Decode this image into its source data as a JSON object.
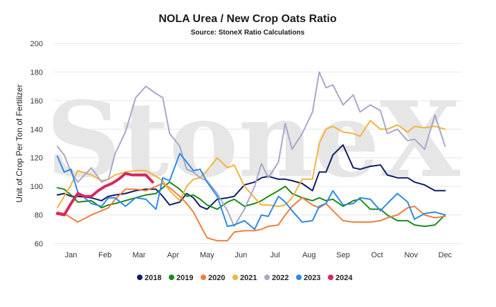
{
  "chart_data": {
    "type": "line",
    "title": "NOLA Urea / New Crop Oats Ratio",
    "subtitle": "Source: StoneX Ratio Calculations",
    "ylabel": "Unit of Crop Per Ton of Fertilizer",
    "watermark": "StoneX",
    "ylim": [
      60,
      200
    ],
    "yticks": [
      60,
      80,
      100,
      120,
      140,
      160,
      180,
      200
    ],
    "xlim": [
      0,
      12
    ],
    "months": [
      "Jan",
      "Feb",
      "Mar",
      "Apr",
      "May",
      "Jun",
      "Jul",
      "Aug",
      "Sep",
      "Oct",
      "Nov",
      "Dec"
    ],
    "grid": true,
    "legend_position": "bottom",
    "series": [
      {
        "name": "2018",
        "color": "#0d1b66",
        "x": [
          0.1,
          0.3,
          0.5,
          0.7,
          1.1,
          1.4,
          1.6,
          1.8,
          2.1,
          2.4,
          2.7,
          3.0,
          3.2,
          3.4,
          3.7,
          3.9,
          4.1,
          4.3,
          4.5,
          4.8,
          5.1,
          5.3,
          5.6,
          5.9,
          6.1,
          6.3,
          6.6,
          6.8,
          7.0,
          7.3,
          7.6,
          7.8,
          8.0,
          8.2,
          8.5,
          8.8,
          9.0,
          9.3,
          9.6,
          9.8,
          10.1,
          10.4,
          10.6,
          10.9,
          11.2,
          11.5
        ],
        "y": [
          94,
          95,
          93,
          93,
          92,
          90,
          93,
          94,
          95,
          97,
          98,
          98,
          93,
          87,
          89,
          95,
          92,
          86,
          84,
          91,
          92,
          93,
          101,
          103,
          106,
          107,
          105,
          105,
          104,
          102,
          97,
          110,
          110,
          122,
          129,
          113,
          112,
          114,
          115,
          108,
          106,
          106,
          103,
          101,
          97,
          97
        ]
      },
      {
        "name": "2019",
        "color": "#1a8a1a",
        "x": [
          0.1,
          0.3,
          0.5,
          0.7,
          1.1,
          1.4,
          1.6,
          1.8,
          2.1,
          2.4,
          2.7,
          3.0,
          3.2,
          3.4,
          3.7,
          3.9,
          4.1,
          4.3,
          4.5,
          4.8,
          5.1,
          5.3,
          5.6,
          5.9,
          6.1,
          6.3,
          6.6,
          6.8,
          7.0,
          7.3,
          7.6,
          7.8,
          8.0,
          8.2,
          8.5,
          8.8,
          9.0,
          9.3,
          9.6,
          9.8,
          10.1,
          10.4,
          10.6,
          10.9,
          11.2,
          11.5
        ],
        "y": [
          99,
          98,
          94,
          89,
          90,
          85,
          87,
          88,
          90,
          92,
          94,
          95,
          99,
          103,
          98,
          93,
          94,
          91,
          87,
          84,
          89,
          91,
          86,
          88,
          90,
          93,
          97,
          100,
          95,
          92,
          90,
          92,
          90,
          91,
          86,
          90,
          91,
          84,
          84,
          80,
          76,
          76,
          73,
          72,
          73,
          80
        ]
      },
      {
        "name": "2020",
        "color": "#f07e3a",
        "x": [
          0.1,
          0.3,
          0.5,
          0.7,
          1.1,
          1.4,
          1.6,
          1.8,
          2.1,
          2.4,
          2.7,
          3.0,
          3.2,
          3.4,
          3.7,
          3.9,
          4.1,
          4.3,
          4.5,
          4.8,
          5.1,
          5.3,
          5.6,
          5.9,
          6.1,
          6.3,
          6.6,
          6.8,
          7.0,
          7.3,
          7.6,
          7.8,
          8.0,
          8.2,
          8.5,
          8.8,
          9.0,
          9.3,
          9.6,
          9.8,
          10.1,
          10.4,
          10.6,
          10.9,
          11.2,
          11.5
        ],
        "y": [
          82,
          81,
          78,
          75,
          80,
          83,
          85,
          91,
          98,
          98,
          97,
          100,
          102,
          99,
          93,
          88,
          82,
          73,
          64,
          62,
          62,
          68,
          69,
          69,
          70,
          72,
          73,
          80,
          86,
          92,
          87,
          85,
          88,
          83,
          76,
          75,
          75,
          75,
          76,
          78,
          80,
          85,
          86,
          80,
          78,
          79
        ]
      },
      {
        "name": "2021",
        "color": "#f5b23c",
        "x": [
          0.1,
          0.3,
          0.5,
          0.7,
          1.1,
          1.4,
          1.6,
          1.8,
          2.1,
          2.4,
          2.7,
          3.0,
          3.2,
          3.4,
          3.7,
          3.9,
          4.1,
          4.3,
          4.5,
          4.8,
          5.1,
          5.3,
          5.6,
          5.9,
          6.1,
          6.3,
          6.6,
          6.8,
          7.0,
          7.3,
          7.6,
          7.8,
          8.0,
          8.2,
          8.5,
          8.8,
          9.0,
          9.3,
          9.6,
          9.8,
          10.1,
          10.4,
          10.6,
          10.9,
          11.2,
          11.5
        ],
        "y": [
          85,
          93,
          101,
          111,
          108,
          104,
          105,
          108,
          110,
          111,
          111,
          107,
          104,
          97,
          90,
          100,
          105,
          106,
          111,
          120,
          113,
          115,
          100,
          92,
          87,
          87,
          86,
          87,
          92,
          105,
          105,
          130,
          140,
          142,
          138,
          137,
          135,
          146,
          140,
          140,
          143,
          138,
          142,
          141,
          142,
          140
        ]
      },
      {
        "name": "2022",
        "color": "#a8a6cc",
        "x": [
          0.1,
          0.3,
          0.5,
          0.7,
          1.1,
          1.4,
          1.6,
          1.8,
          2.1,
          2.4,
          2.7,
          3.0,
          3.2,
          3.4,
          3.7,
          3.9,
          4.1,
          4.3,
          4.5,
          4.8,
          5.1,
          5.3,
          5.6,
          5.9,
          6.1,
          6.3,
          6.6,
          6.8,
          7.0,
          7.3,
          7.6,
          7.8,
          8.0,
          8.2,
          8.5,
          8.8,
          9.0,
          9.3,
          9.6,
          9.8,
          10.1,
          10.4,
          10.6,
          10.9,
          11.2,
          11.5
        ],
        "y": [
          128,
          122,
          110,
          103,
          113,
          103,
          105,
          123,
          138,
          162,
          170,
          165,
          162,
          137,
          128,
          112,
          110,
          106,
          104,
          95,
          83,
          72,
          84,
          100,
          116,
          106,
          117,
          144,
          126,
          137,
          152,
          180,
          169,
          171,
          157,
          164,
          152,
          157,
          153,
          137,
          140,
          132,
          133,
          126,
          150,
          128
        ]
      },
      {
        "name": "2023",
        "color": "#2b8ae6",
        "x": [
          0.1,
          0.3,
          0.5,
          0.7,
          1.1,
          1.4,
          1.6,
          1.8,
          2.1,
          2.4,
          2.7,
          3.0,
          3.2,
          3.4,
          3.7,
          3.9,
          4.1,
          4.3,
          4.5,
          4.8,
          5.1,
          5.3,
          5.6,
          5.9,
          6.1,
          6.3,
          6.6,
          6.8,
          7.0,
          7.3,
          7.6,
          7.8,
          8.0,
          8.2,
          8.5,
          8.8,
          9.0,
          9.3,
          9.6,
          9.8,
          10.1,
          10.4,
          10.6,
          10.9,
          11.2,
          11.5
        ],
        "y": [
          121,
          110,
          112,
          96,
          88,
          86,
          92,
          92,
          86,
          92,
          91,
          84,
          106,
          104,
          123,
          117,
          111,
          112,
          103,
          93,
          72,
          73,
          76,
          70,
          80,
          79,
          93,
          89,
          83,
          75,
          76,
          86,
          88,
          97,
          87,
          88,
          92,
          91,
          83,
          88,
          95,
          89,
          77,
          81,
          82,
          80
        ]
      },
      {
        "name": "2024",
        "color": "#d42a5e",
        "x": [
          0.1,
          0.3,
          0.5,
          0.7,
          0.9,
          1.1,
          1.3,
          1.5,
          1.7,
          1.9,
          2.1,
          2.3,
          2.5,
          2.7,
          2.9
        ],
        "y": [
          81,
          80,
          88,
          95,
          93,
          93,
          97,
          100,
          102,
          105,
          109,
          108,
          108,
          108,
          103
        ]
      }
    ]
  }
}
